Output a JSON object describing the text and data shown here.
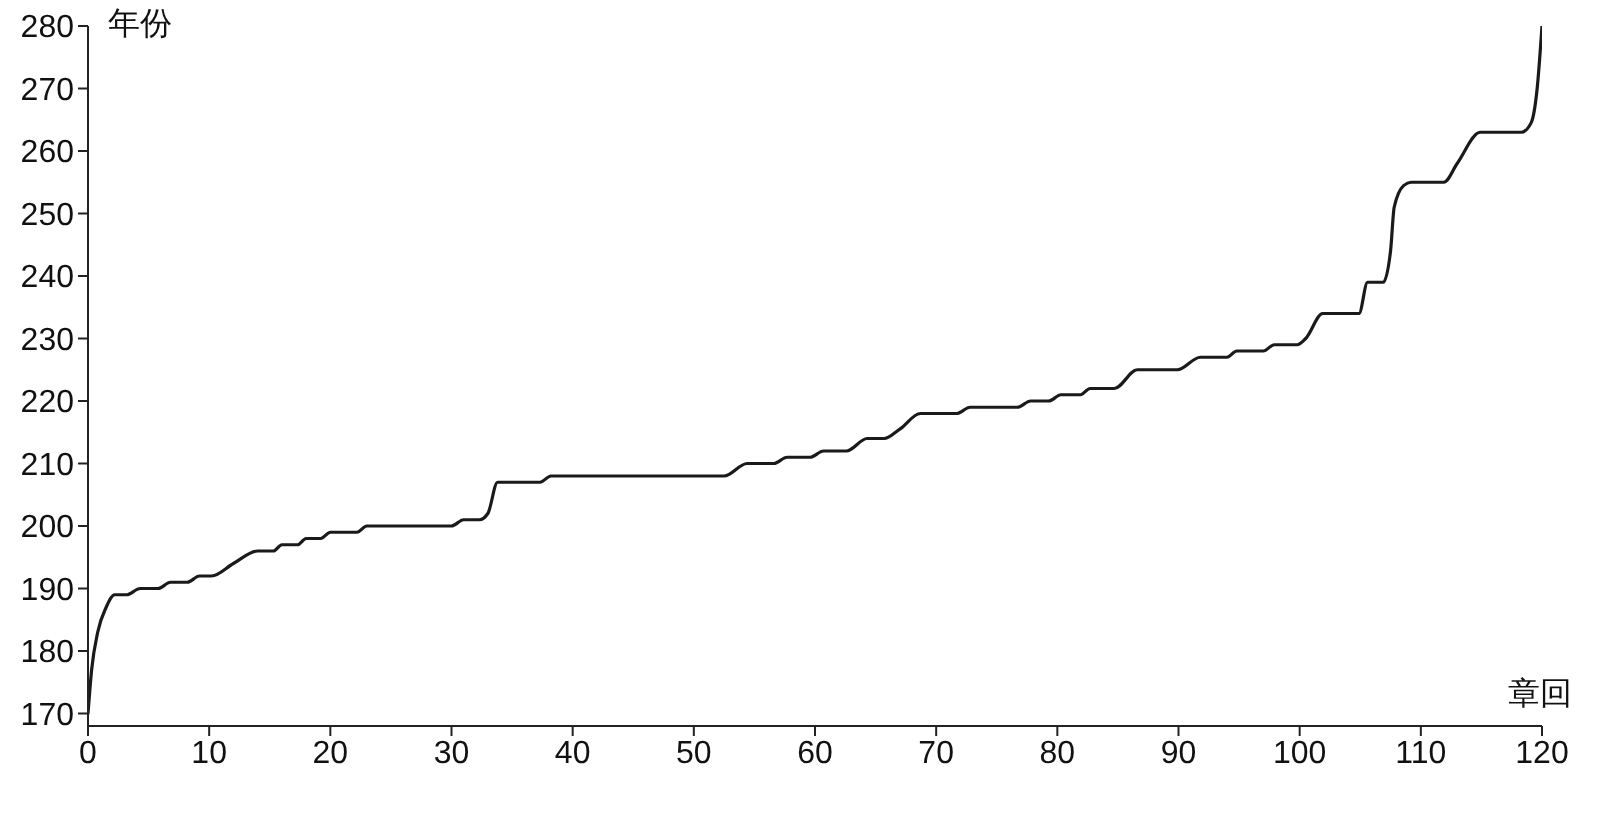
{
  "chart_data": {
    "type": "line",
    "xlabel": "章回",
    "ylabel": "年份",
    "x": [
      0,
      0.3,
      0.8,
      1.5,
      2.2,
      3.2,
      4.3,
      5.8,
      6.8,
      8.2,
      9.2,
      10.2,
      12,
      14,
      15.3,
      16,
      17.3,
      18,
      19.2,
      20,
      22.2,
      23,
      30,
      31,
      32.3,
      33,
      33.8,
      37.3,
      38.2,
      52.5,
      54.4,
      56.6,
      57.7,
      59.6,
      60.7,
      62.6,
      64.3,
      65.7,
      67,
      68.7,
      71.7,
      72.8,
      76.7,
      77.8,
      79.3,
      80.3,
      81.9,
      82.7,
      84.7,
      86.6,
      89.9,
      91.8,
      94,
      94.8,
      97,
      97.9,
      99.8,
      100.5,
      101.9,
      104.9,
      105.6,
      106.9,
      107.5,
      107.8,
      108.6,
      109.2,
      111.9,
      113,
      114.9,
      118.3,
      119.1,
      119.6,
      120
    ],
    "series": [
      {
        "color": "#1a1a1a",
        "values": [
          170,
          177,
          183,
          187,
          189,
          189,
          190,
          190,
          191,
          191,
          192,
          192,
          194,
          196,
          196,
          197,
          197,
          198,
          198,
          199,
          199,
          200,
          200,
          201,
          201,
          202,
          207,
          207,
          208,
          208,
          210,
          210,
          211,
          211,
          212,
          212,
          214,
          214,
          215.5,
          218,
          218,
          219,
          219,
          220,
          220,
          221,
          221,
          222,
          222,
          225,
          225,
          227,
          227,
          228,
          228,
          229,
          229,
          230,
          234,
          234,
          239,
          239,
          244,
          251,
          254.5,
          255,
          255,
          258,
          263,
          263,
          264.5,
          270,
          280
        ]
      }
    ],
    "xlim": [
      0,
      120
    ],
    "ylim": [
      168,
      280
    ],
    "xticks": [
      0,
      10,
      20,
      30,
      40,
      50,
      60,
      70,
      80,
      90,
      100,
      110,
      120
    ],
    "yticks": [
      170,
      180,
      190,
      200,
      210,
      220,
      230,
      240,
      250,
      260,
      270,
      280
    ],
    "marker": "none",
    "line_style": "solid"
  }
}
